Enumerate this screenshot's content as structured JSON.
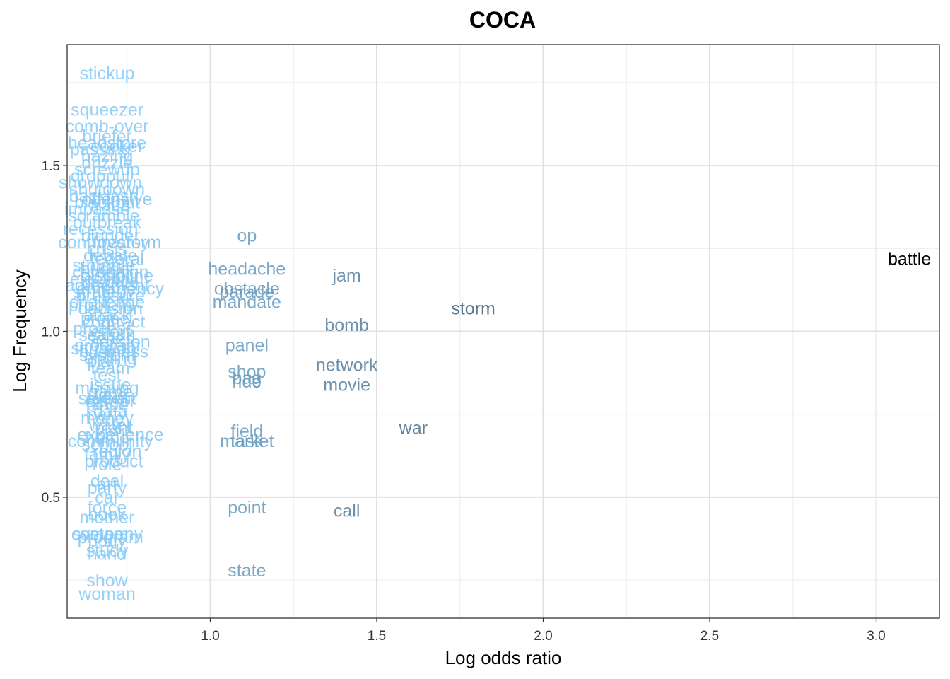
{
  "chart_data": {
    "type": "scatter",
    "title": "COCA",
    "xlabel": "Log odds ratio",
    "ylabel": "Log Frequency",
    "xlim": [
      0.57,
      3.19
    ],
    "ylim": [
      0.135,
      1.865
    ],
    "x_ticks": [
      1.0,
      1.5,
      2.0,
      2.5,
      3.0
    ],
    "x_tick_labels": [
      "1.0",
      "1.5",
      "2.0",
      "2.5",
      "3.0"
    ],
    "y_ticks": [
      0.5,
      1.0,
      1.5
    ],
    "y_tick_labels": [
      "0.5",
      "1.0",
      "1.5"
    ],
    "grid": true,
    "color_scale": {
      "low": "#87cfff",
      "high": "#000000",
      "mapped_to": "log odds ratio"
    },
    "points": [
      {
        "label": "battle",
        "x": 3.1,
        "y": 1.22
      },
      {
        "label": "storm",
        "x": 1.79,
        "y": 1.07
      },
      {
        "label": "war",
        "x": 1.61,
        "y": 0.71
      },
      {
        "label": "jam",
        "x": 1.41,
        "y": 1.17
      },
      {
        "label": "bomb",
        "x": 1.41,
        "y": 1.02
      },
      {
        "label": "network",
        "x": 1.41,
        "y": 0.9
      },
      {
        "label": "movie",
        "x": 1.41,
        "y": 0.84
      },
      {
        "label": "call",
        "x": 1.41,
        "y": 0.46
      },
      {
        "label": "op",
        "x": 1.11,
        "y": 1.29
      },
      {
        "label": "headache",
        "x": 1.11,
        "y": 1.19
      },
      {
        "label": "obstacle",
        "x": 1.11,
        "y": 1.13
      },
      {
        "label": "parade",
        "x": 1.11,
        "y": 1.12
      },
      {
        "label": "mandate",
        "x": 1.11,
        "y": 1.09
      },
      {
        "label": "panel",
        "x": 1.11,
        "y": 0.96
      },
      {
        "label": "shop",
        "x": 1.11,
        "y": 0.88
      },
      {
        "label": "bag",
        "x": 1.11,
        "y": 0.86
      },
      {
        "label": "ride",
        "x": 1.11,
        "y": 0.85
      },
      {
        "label": "field",
        "x": 1.11,
        "y": 0.7
      },
      {
        "label": "task",
        "x": 1.11,
        "y": 0.67
      },
      {
        "label": "market",
        "x": 1.11,
        "y": 0.67
      },
      {
        "label": "point",
        "x": 1.11,
        "y": 0.47
      },
      {
        "label": "state",
        "x": 1.11,
        "y": 0.28
      },
      {
        "label": "stickup",
        "x": 0.69,
        "y": 1.78
      },
      {
        "label": "squeezer",
        "x": 0.69,
        "y": 1.67
      },
      {
        "label": "comb-over",
        "x": 0.69,
        "y": 1.62
      },
      {
        "label": "briefer",
        "x": 0.69,
        "y": 1.59
      },
      {
        "label": "headstore",
        "x": 0.69,
        "y": 1.57
      },
      {
        "label": "cooker",
        "x": 0.72,
        "y": 1.56
      },
      {
        "label": "passing",
        "x": 0.67,
        "y": 1.55
      },
      {
        "label": "hazing",
        "x": 0.69,
        "y": 1.53
      },
      {
        "label": "drizzle",
        "x": 0.69,
        "y": 1.51
      },
      {
        "label": "screwup",
        "x": 0.69,
        "y": 1.49
      },
      {
        "label": "dropout",
        "x": 0.67,
        "y": 1.47
      },
      {
        "label": "showdown",
        "x": 0.67,
        "y": 1.45
      },
      {
        "label": "shutdown",
        "x": 0.69,
        "y": 1.43
      },
      {
        "label": "backlash",
        "x": 0.68,
        "y": 1.41
      },
      {
        "label": "offensive",
        "x": 0.72,
        "y": 1.4
      },
      {
        "label": "blackout",
        "x": 0.69,
        "y": 1.39
      },
      {
        "label": "fraud",
        "x": 0.7,
        "y": 1.38
      },
      {
        "label": "impasse",
        "x": 0.66,
        "y": 1.37
      },
      {
        "label": "scramble",
        "x": 0.68,
        "y": 1.35
      },
      {
        "label": "outbreak",
        "x": 0.69,
        "y": 1.33
      },
      {
        "label": "recession",
        "x": 0.67,
        "y": 1.31
      },
      {
        "label": "blunder",
        "x": 0.7,
        "y": 1.29
      },
      {
        "label": "firestorm",
        "x": 0.75,
        "y": 1.27
      },
      {
        "label": "controversy",
        "x": 0.68,
        "y": 1.27
      },
      {
        "label": "crisis",
        "x": 0.69,
        "y": 1.25
      },
      {
        "label": "debate",
        "x": 0.7,
        "y": 1.23
      },
      {
        "label": "federal",
        "x": 0.72,
        "y": 1.22
      },
      {
        "label": "struggle",
        "x": 0.68,
        "y": 1.2
      },
      {
        "label": "budget",
        "x": 0.69,
        "y": 1.19
      },
      {
        "label": "campaign",
        "x": 0.7,
        "y": 1.18
      },
      {
        "label": "discipline",
        "x": 0.72,
        "y": 1.17
      },
      {
        "label": "election",
        "x": 0.67,
        "y": 1.16
      },
      {
        "label": "dispute",
        "x": 0.7,
        "y": 1.15
      },
      {
        "label": "agreement",
        "x": 0.69,
        "y": 1.14
      },
      {
        "label": "emergency",
        "x": 0.73,
        "y": 1.13
      },
      {
        "label": "strategy",
        "x": 0.68,
        "y": 1.12
      },
      {
        "label": "pressure",
        "x": 0.7,
        "y": 1.11
      },
      {
        "label": "challenge",
        "x": 0.69,
        "y": 1.09
      },
      {
        "label": "problem",
        "x": 0.67,
        "y": 1.08
      },
      {
        "label": "decision",
        "x": 0.7,
        "y": 1.07
      },
      {
        "label": "attack",
        "x": 0.69,
        "y": 1.05
      },
      {
        "label": "project",
        "x": 0.69,
        "y": 1.04
      },
      {
        "label": "contract",
        "x": 0.71,
        "y": 1.03
      },
      {
        "label": "process",
        "x": 0.68,
        "y": 1.01
      },
      {
        "label": "effort",
        "x": 0.7,
        "y": 1.0
      },
      {
        "label": "season",
        "x": 0.69,
        "y": 0.99
      },
      {
        "label": "series",
        "x": 0.7,
        "y": 0.98
      },
      {
        "label": "session",
        "x": 0.73,
        "y": 0.97
      },
      {
        "label": "program",
        "x": 0.69,
        "y": 0.96
      },
      {
        "label": "situation",
        "x": 0.68,
        "y": 0.95
      },
      {
        "label": "business",
        "x": 0.71,
        "y": 0.94
      },
      {
        "label": "system",
        "x": 0.69,
        "y": 0.93
      },
      {
        "label": "ending",
        "x": 0.7,
        "y": 0.92
      },
      {
        "label": "plan",
        "x": 0.68,
        "y": 0.91
      },
      {
        "label": "team",
        "x": 0.7,
        "y": 0.89
      },
      {
        "label": "test",
        "x": 0.69,
        "y": 0.87
      },
      {
        "label": "issue",
        "x": 0.7,
        "y": 0.84
      },
      {
        "label": "morning",
        "x": 0.69,
        "y": 0.83
      },
      {
        "label": "game",
        "x": 0.7,
        "y": 0.82
      },
      {
        "label": "time",
        "x": 0.7,
        "y": 0.81
      },
      {
        "label": "student",
        "x": 0.69,
        "y": 0.8
      },
      {
        "label": "event",
        "x": 0.69,
        "y": 0.8
      },
      {
        "label": "career",
        "x": 0.7,
        "y": 0.79
      },
      {
        "label": "place",
        "x": 0.69,
        "y": 0.78
      },
      {
        "label": "data",
        "x": 0.7,
        "y": 0.76
      },
      {
        "label": "party",
        "x": 0.69,
        "y": 0.75
      },
      {
        "label": "money",
        "x": 0.69,
        "y": 0.74
      },
      {
        "label": "water",
        "x": 0.7,
        "y": 0.72
      },
      {
        "label": "plant",
        "x": 0.71,
        "y": 0.71
      },
      {
        "label": "experience",
        "x": 0.73,
        "y": 0.69
      },
      {
        "label": "home",
        "x": 0.69,
        "y": 0.68
      },
      {
        "label": "community",
        "x": 0.7,
        "y": 0.67
      },
      {
        "label": "school",
        "x": 0.69,
        "y": 0.66
      },
      {
        "label": "region",
        "x": 0.72,
        "y": 0.64
      },
      {
        "label": "family",
        "x": 0.69,
        "y": 0.63
      },
      {
        "label": "product",
        "x": 0.71,
        "y": 0.61
      },
      {
        "label": "role",
        "x": 0.69,
        "y": 0.6
      },
      {
        "label": "deal",
        "x": 0.69,
        "y": 0.55
      },
      {
        "label": "art",
        "x": 0.69,
        "y": 0.54
      },
      {
        "label": "party",
        "x": 0.69,
        "y": 0.53
      },
      {
        "label": "car",
        "x": 0.69,
        "y": 0.5
      },
      {
        "label": "force",
        "x": 0.69,
        "y": 0.47
      },
      {
        "label": "book",
        "x": 0.69,
        "y": 0.45
      },
      {
        "label": "mother",
        "x": 0.69,
        "y": 0.44
      },
      {
        "label": "company",
        "x": 0.69,
        "y": 0.39
      },
      {
        "label": "system",
        "x": 0.67,
        "y": 0.39
      },
      {
        "label": "program",
        "x": 0.7,
        "y": 0.38
      },
      {
        "label": "body",
        "x": 0.69,
        "y": 0.37
      },
      {
        "label": "study",
        "x": 0.69,
        "y": 0.34
      },
      {
        "label": "hand",
        "x": 0.69,
        "y": 0.33
      },
      {
        "label": "show",
        "x": 0.69,
        "y": 0.25
      },
      {
        "label": "woman",
        "x": 0.69,
        "y": 0.21
      }
    ]
  }
}
